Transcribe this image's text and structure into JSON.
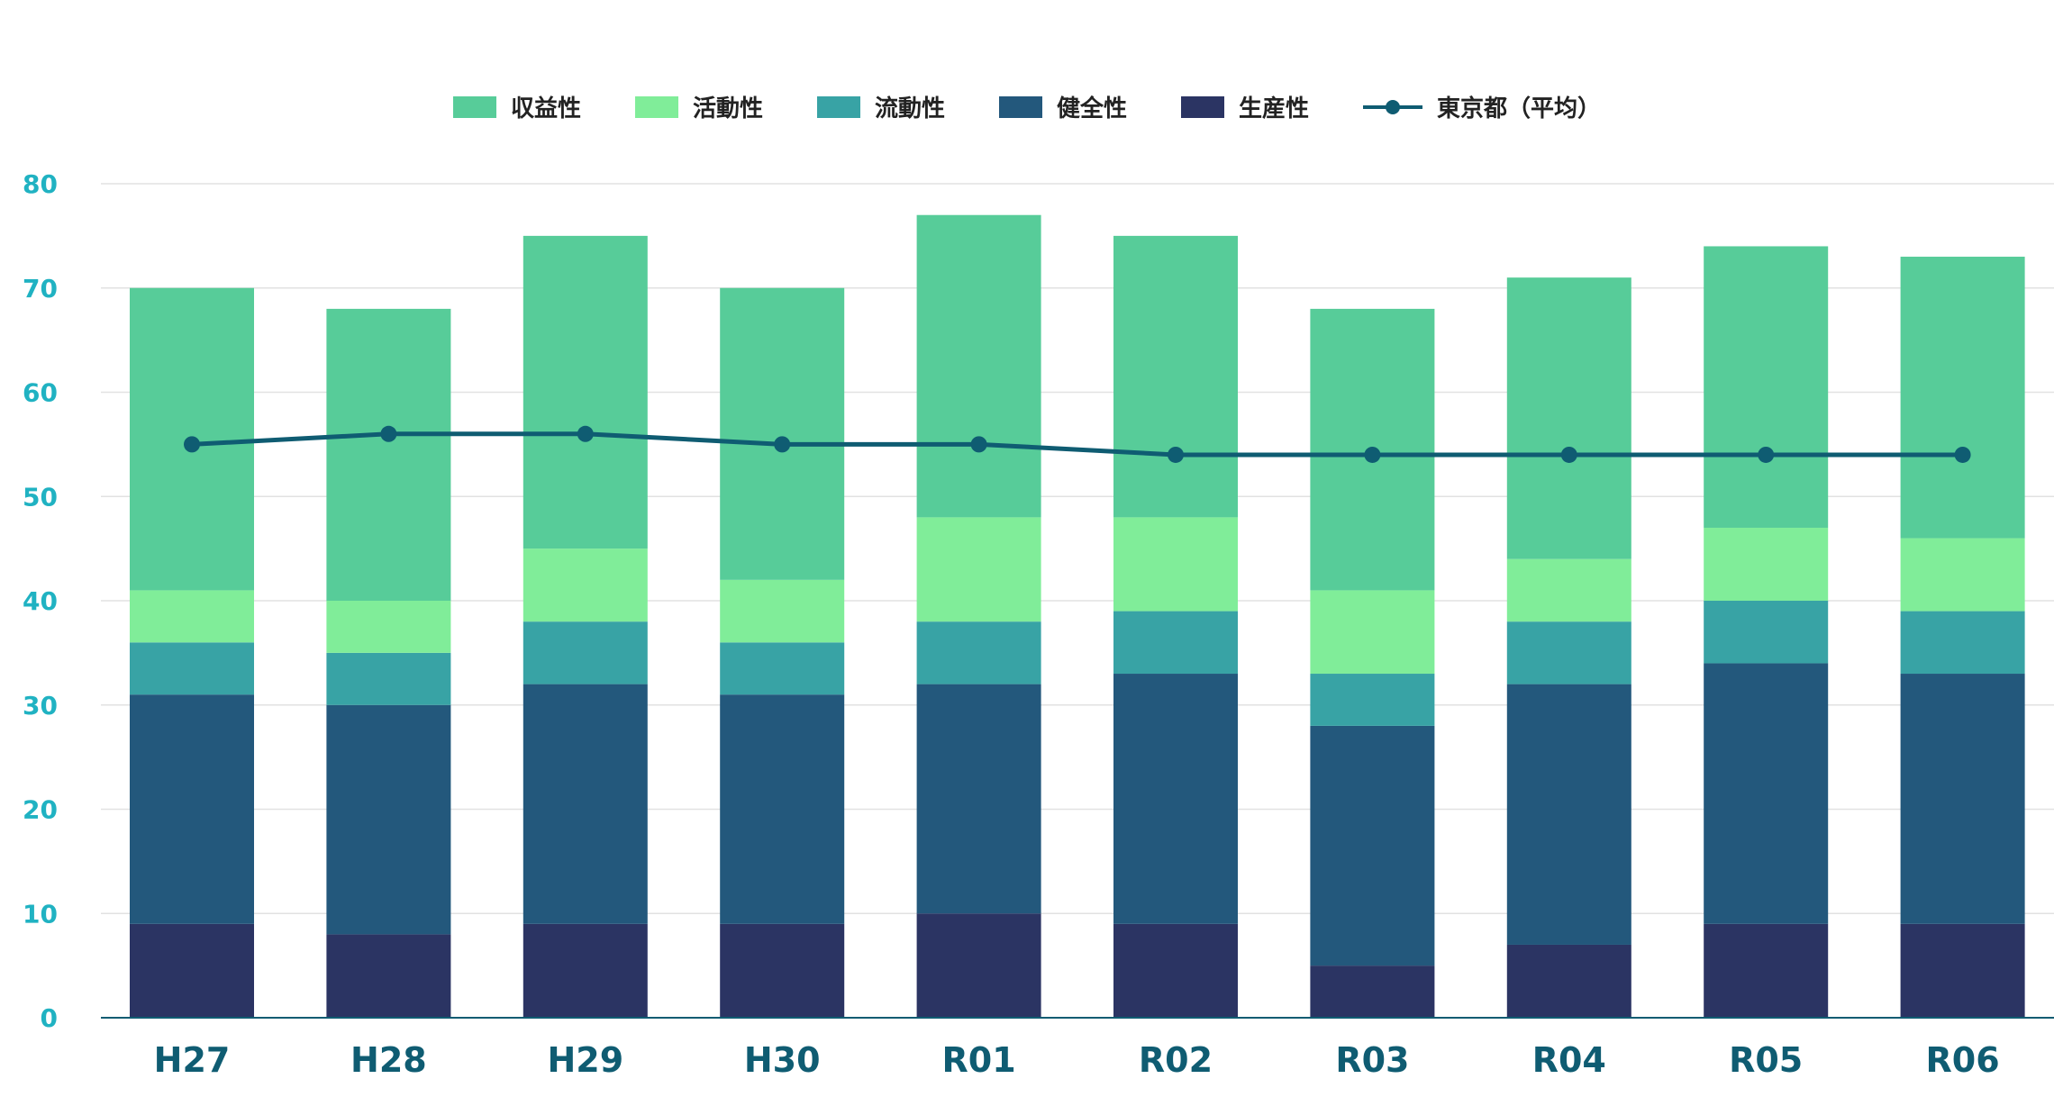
{
  "chart_data": {
    "type": "bar",
    "stacked": true,
    "categories": [
      "H27",
      "H28",
      "H29",
      "H30",
      "R01",
      "R02",
      "R03",
      "R04",
      "R05",
      "R06"
    ],
    "series": [
      {
        "name": "生産性",
        "color": "#2b3463",
        "values": [
          9,
          8,
          9,
          9,
          10,
          9,
          5,
          7,
          9,
          9
        ]
      },
      {
        "name": "健全性",
        "color": "#23587c",
        "values": [
          22,
          22,
          23,
          22,
          22,
          24,
          23,
          25,
          25,
          24
        ]
      },
      {
        "name": "流動性",
        "color": "#38a3a5",
        "values": [
          5,
          5,
          6,
          5,
          6,
          6,
          5,
          6,
          6,
          6
        ]
      },
      {
        "name": "活動性",
        "color": "#80ed99",
        "values": [
          5,
          5,
          7,
          6,
          10,
          9,
          8,
          6,
          7,
          7
        ]
      },
      {
        "name": "収益性",
        "color": "#57cc99",
        "values": [
          29,
          28,
          30,
          28,
          29,
          27,
          27,
          27,
          27,
          27
        ]
      }
    ],
    "line": {
      "name": "東京都（平均）",
      "color": "#0f5c72",
      "values": [
        55,
        56,
        56,
        55,
        55,
        54,
        54,
        54,
        54,
        54
      ]
    },
    "legend_order": [
      "収益性",
      "活動性",
      "流動性",
      "健全性",
      "生産性",
      "東京都（平均）"
    ],
    "yticks": [
      "0",
      "10",
      "20",
      "30",
      "40",
      "50",
      "60",
      "70",
      "80"
    ],
    "ylim": [
      0,
      80
    ],
    "grid": true,
    "legend_position": "top-center",
    "title": "",
    "xlabel": "",
    "ylabel": "",
    "colors": {
      "ytick": "#20b2c2",
      "xtick": "#0f5c72",
      "grid": "#e2e2e2",
      "axis": "#0f5c72"
    }
  }
}
